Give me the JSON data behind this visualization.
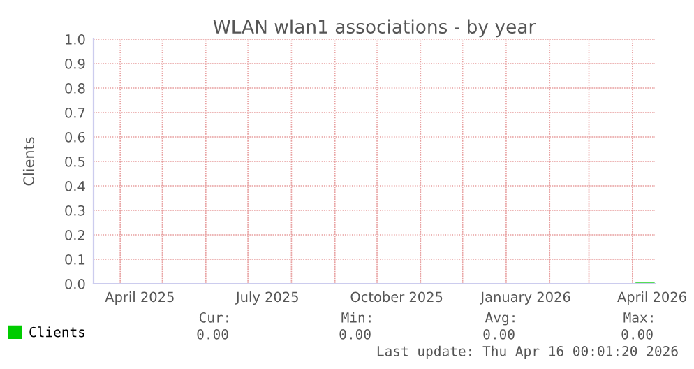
{
  "chart_data": {
    "type": "line",
    "title": "WLAN wlan1 associations - by year",
    "ylabel": "Clients",
    "x": [
      "2026-04-04",
      "2026-04-16"
    ],
    "series": [
      {
        "name": "Clients",
        "color": "#00cc00",
        "values": [
          0,
          0
        ]
      }
    ],
    "xlim": [
      "2025-03-13",
      "2026-04-17"
    ],
    "xticks": [
      {
        "value": "2025-04-01",
        "label": null
      },
      {
        "value": "2025-04-15",
        "label": "April 2025"
      },
      {
        "value": "2025-05-01",
        "label": null
      },
      {
        "value": "2025-06-01",
        "label": null
      },
      {
        "value": "2025-07-01",
        "label": null
      },
      {
        "value": "2025-07-15",
        "label": "July 2025"
      },
      {
        "value": "2025-08-01",
        "label": null
      },
      {
        "value": "2025-09-01",
        "label": null
      },
      {
        "value": "2025-10-01",
        "label": null
      },
      {
        "value": "2025-10-15",
        "label": "October 2025"
      },
      {
        "value": "2025-11-01",
        "label": null
      },
      {
        "value": "2025-12-01",
        "label": null
      },
      {
        "value": "2026-01-01",
        "label": null
      },
      {
        "value": "2026-01-15",
        "label": "January 2026"
      },
      {
        "value": "2026-02-01",
        "label": null
      },
      {
        "value": "2026-03-01",
        "label": null
      },
      {
        "value": "2026-04-01",
        "label": null
      },
      {
        "value": "2026-04-15",
        "label": "April 2026"
      }
    ],
    "ylim": [
      0.0,
      1.0
    ],
    "yticks": [
      {
        "value": 0,
        "label": "0.0"
      },
      0.1,
      0.2,
      0.3,
      0.4,
      0.5,
      0.6,
      0.7,
      0.8,
      0.9,
      {
        "value": 1,
        "label": "1.0"
      }
    ],
    "grid": true,
    "legend": "bottom left",
    "annotations": [
      "Cur:",
      "Min:",
      "Avg:",
      "Max:",
      "0.00",
      "0.00",
      "0.00",
      "0.00",
      "Last update: Thu Apr 16 00:01:20 2026"
    ]
  }
}
